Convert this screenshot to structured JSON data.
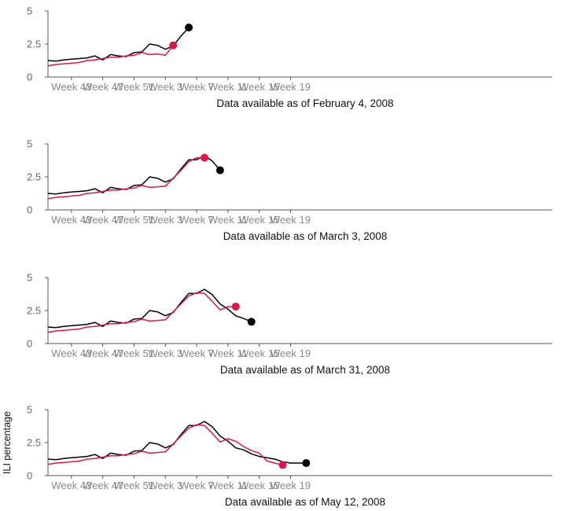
{
  "chart_data": [
    {
      "type": "line",
      "caption": "Data available as of February 4, 2008",
      "x_ticks": [
        "Week 43",
        "Week 47",
        "Week 51",
        "Week 3",
        "Week 7",
        "Week 11",
        "Week 15",
        "Week 19"
      ],
      "y_ticks": [
        "0",
        "2.5",
        "5"
      ],
      "ylim": [
        0,
        5
      ],
      "series": [
        {
          "color": "#000000",
          "values": [
            1.25,
            1.2,
            1.3,
            1.35,
            1.4,
            1.45,
            1.6,
            1.3,
            1.7,
            1.6,
            1.55,
            1.85,
            1.9,
            2.5,
            2.4,
            2.1,
            2.35,
            3.1,
            3.75
          ]
        },
        {
          "color": "#e0144c",
          "values": [
            0.85,
            0.95,
            1.0,
            1.05,
            1.1,
            1.25,
            1.3,
            1.4,
            1.5,
            1.5,
            1.6,
            1.65,
            1.85,
            1.7,
            1.75,
            1.65,
            2.4
          ]
        }
      ]
    },
    {
      "type": "line",
      "caption": "Data available as of March 3, 2008",
      "x_ticks": [
        "Week 43",
        "Week 47",
        "Week 51",
        "Week 3",
        "Week 7",
        "Week 11",
        "Week 15",
        "Week 19"
      ],
      "y_ticks": [
        "0",
        "2.5",
        "5"
      ],
      "ylim": [
        0,
        5
      ],
      "series": [
        {
          "color": "#000000",
          "values": [
            1.25,
            1.2,
            1.3,
            1.35,
            1.4,
            1.45,
            1.6,
            1.3,
            1.7,
            1.6,
            1.55,
            1.85,
            1.9,
            2.5,
            2.4,
            2.1,
            2.35,
            3.1,
            3.8,
            3.8,
            4.1,
            3.7,
            3.0
          ]
        },
        {
          "color": "#e0144c",
          "values": [
            0.85,
            0.95,
            1.0,
            1.05,
            1.1,
            1.25,
            1.3,
            1.4,
            1.5,
            1.5,
            1.6,
            1.65,
            1.85,
            1.7,
            1.75,
            1.8,
            2.4,
            3.0,
            3.65,
            3.95,
            3.95
          ]
        }
      ]
    },
    {
      "type": "line",
      "caption": "Data available as of March 31, 2008",
      "x_ticks": [
        "Week 43",
        "Week 47",
        "Week 51",
        "Week 3",
        "Week 7",
        "Week 11",
        "Week 15",
        "Week 19"
      ],
      "y_ticks": [
        "0",
        "2.5",
        "5"
      ],
      "ylim": [
        0,
        5
      ],
      "series": [
        {
          "color": "#000000",
          "values": [
            1.25,
            1.2,
            1.3,
            1.35,
            1.4,
            1.45,
            1.6,
            1.3,
            1.7,
            1.6,
            1.55,
            1.85,
            1.9,
            2.5,
            2.4,
            2.1,
            2.35,
            3.1,
            3.8,
            3.8,
            4.1,
            3.7,
            3.0,
            2.6,
            2.1,
            1.9,
            1.65
          ]
        },
        {
          "color": "#e0144c",
          "values": [
            0.85,
            0.95,
            1.0,
            1.05,
            1.1,
            1.25,
            1.3,
            1.4,
            1.5,
            1.5,
            1.6,
            1.65,
            1.85,
            1.7,
            1.75,
            1.8,
            2.4,
            3.0,
            3.6,
            3.85,
            3.8,
            3.2,
            2.55,
            2.8,
            2.8
          ]
        }
      ]
    },
    {
      "type": "line",
      "caption": "Data available as of May 12, 2008",
      "ylabel": "ILI percentage",
      "x_ticks": [
        "Week 43",
        "Week 47",
        "Week 51",
        "Week 3",
        "Week 7",
        "Week 11",
        "Week 15",
        "Week 19"
      ],
      "y_ticks": [
        "0",
        "2.5",
        "5"
      ],
      "ylim": [
        0,
        5
      ],
      "series": [
        {
          "color": "#000000",
          "values": [
            1.25,
            1.2,
            1.3,
            1.35,
            1.4,
            1.45,
            1.6,
            1.3,
            1.7,
            1.6,
            1.55,
            1.85,
            1.9,
            2.5,
            2.4,
            2.1,
            2.35,
            3.1,
            3.8,
            3.8,
            4.1,
            3.7,
            3.0,
            2.6,
            2.1,
            1.95,
            1.65,
            1.45,
            1.35,
            1.25,
            1.05,
            0.95,
            0.95,
            0.95
          ]
        },
        {
          "color": "#e0144c",
          "values": [
            0.85,
            0.95,
            1.0,
            1.05,
            1.1,
            1.25,
            1.3,
            1.4,
            1.5,
            1.5,
            1.6,
            1.65,
            1.85,
            1.7,
            1.75,
            1.8,
            2.4,
            3.0,
            3.6,
            3.85,
            3.8,
            3.2,
            2.55,
            2.8,
            2.6,
            2.2,
            1.9,
            1.7,
            1.1,
            0.95,
            0.8
          ]
        }
      ]
    }
  ]
}
